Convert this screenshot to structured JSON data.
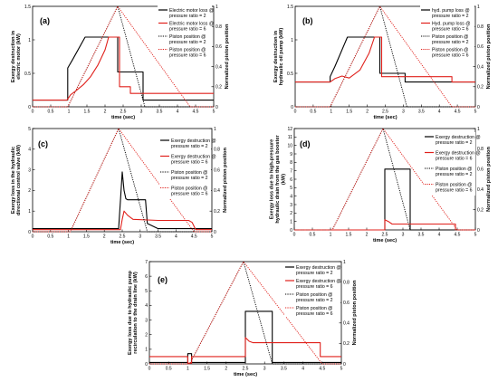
{
  "chart_data": [
    {
      "type": "line",
      "panel_label": "(a)",
      "xlabel": "time (sec)",
      "ylabel": "Exergy destruction in electric motor (kW)",
      "y2label": "Normalized piston position",
      "xlim": [
        0,
        5
      ],
      "ylim": [
        0,
        1.5
      ],
      "y2lim": [
        0,
        1
      ],
      "xticks": [
        "0",
        "0.5",
        "1",
        "1.5",
        "2",
        "2.5",
        "3",
        "3.5",
        "4",
        "4.5",
        "5"
      ],
      "yticks": [
        "0",
        "0.5",
        "1",
        "1.5"
      ],
      "y2ticks": [
        "0",
        "0.2",
        "0.4",
        "0.6",
        "0.8",
        "1"
      ],
      "legend_position": "top-right",
      "series": [
        {
          "name": "Electric motor loss @ pressure ratio = 2",
          "color": "#000000",
          "dash": "solid",
          "axis": "left",
          "x": [
            0,
            0.97,
            0.97,
            1.1,
            1.45,
            2.35,
            2.35,
            3.05,
            3.05,
            5
          ],
          "y": [
            0.1,
            0.1,
            0.58,
            0.7,
            1.04,
            1.04,
            0.52,
            0.52,
            0.1,
            0.1
          ]
        },
        {
          "name": "Electric motor loss @ pressure ratio = 6",
          "color": "#e0201b",
          "dash": "solid",
          "axis": "left",
          "x": [
            0,
            0.95,
            1.05,
            1.2,
            1.4,
            1.6,
            1.8,
            2.0,
            2.1,
            2.1,
            2.4,
            2.4,
            2.7,
            2.7,
            5
          ],
          "y": [
            0.1,
            0.1,
            0.18,
            0.24,
            0.33,
            0.45,
            0.62,
            0.85,
            1.04,
            1.04,
            1.04,
            0.3,
            0.3,
            0.2,
            0.2
          ]
        },
        {
          "name": "Piston position @ pressure ratio = 2",
          "color": "#000000",
          "dash": "dotted",
          "axis": "right",
          "x": [
            0,
            0.97,
            2.35,
            3.1,
            5
          ],
          "y": [
            0,
            0,
            1,
            0,
            0
          ]
        },
        {
          "name": "Piston position @ pressure ratio = 6",
          "color": "#e0201b",
          "dash": "dotted",
          "axis": "right",
          "x": [
            0,
            0.97,
            2.35,
            4.35,
            5
          ],
          "y": [
            0,
            0,
            1,
            0,
            0
          ]
        }
      ]
    },
    {
      "type": "line",
      "panel_label": "(b)",
      "xlabel": "time (sec)",
      "ylabel": "Exergy destruction in hydraulic oil pump (kW)",
      "y2label": "Normalized piston position",
      "xlim": [
        0,
        5
      ],
      "ylim": [
        0,
        1.5
      ],
      "y2lim": [
        0,
        1
      ],
      "xticks": [
        "0",
        "0.5",
        "1",
        "1.5",
        "2",
        "2.5",
        "3",
        "3.5",
        "4",
        "4.5",
        "5"
      ],
      "yticks": [
        "0",
        "0.5",
        "1",
        "1.5"
      ],
      "y2ticks": [
        "0",
        "0.2",
        "0.4",
        "0.6",
        "0.8",
        "1"
      ],
      "legend_position": "top-right",
      "series": [
        {
          "name": "hyd. pump loss @ pressure ratio = 2",
          "color": "#000000",
          "dash": "solid",
          "axis": "left",
          "x": [
            0,
            0.97,
            0.97,
            1.1,
            1.45,
            2.35,
            2.35,
            3.05,
            3.05,
            5
          ],
          "y": [
            0.37,
            0.37,
            0.45,
            0.6,
            1.04,
            1.04,
            0.5,
            0.5,
            0.37,
            0.37
          ]
        },
        {
          "name": "Hyd. pump loss @ pressure ratio = 6",
          "color": "#e0201b",
          "dash": "solid",
          "axis": "left",
          "x": [
            0,
            0.97,
            1.1,
            1.3,
            1.5,
            1.8,
            2.05,
            2.2,
            2.2,
            2.4,
            2.4,
            4.35,
            4.35,
            5
          ],
          "y": [
            0.37,
            0.37,
            0.42,
            0.46,
            0.43,
            0.55,
            0.8,
            1.04,
            1.04,
            1.04,
            0.45,
            0.45,
            0.37,
            0.37
          ]
        },
        {
          "name": "Piston position @ pressure ratio = 2",
          "color": "#000000",
          "dash": "dotted",
          "axis": "right",
          "x": [
            0,
            0.97,
            2.35,
            3.1,
            5
          ],
          "y": [
            0,
            0,
            1,
            0,
            0
          ]
        },
        {
          "name": "Piston position @ pressure ratio = 6",
          "color": "#e0201b",
          "dash": "dotted",
          "axis": "right",
          "x": [
            0,
            0.97,
            2.35,
            4.35,
            5
          ],
          "y": [
            0,
            0,
            1,
            0,
            0
          ]
        }
      ]
    },
    {
      "type": "line",
      "panel_label": "(c)",
      "xlabel": "time (sec)",
      "ylabel": "Exergy loss in the hydraulic directional control valve (kW)",
      "y2label": "Normalized piston position",
      "xlim": [
        0,
        5
      ],
      "ylim": [
        0,
        5
      ],
      "y2lim": [
        0,
        1
      ],
      "xticks": [
        "0",
        "0.5",
        "1",
        "1.5",
        "2",
        "2.5",
        "3",
        "3.5",
        "4",
        "4.5",
        "5"
      ],
      "yticks": [
        "0",
        "1",
        "2",
        "3",
        "4",
        "5"
      ],
      "y2ticks": [
        "0",
        "0.2",
        "0.4",
        "0.6",
        "0.8",
        "1"
      ],
      "legend_position": "right",
      "series": [
        {
          "name": "Exergy destruction @ pressure ratio = 2",
          "color": "#000000",
          "dash": "solid",
          "axis": "left",
          "x": [
            0,
            2.4,
            2.45,
            2.5,
            2.55,
            2.6,
            2.65,
            2.7,
            3.15,
            3.2,
            3.5,
            4.4,
            5
          ],
          "y": [
            0.15,
            0.15,
            1.5,
            2.9,
            2.0,
            1.6,
            1.55,
            1.55,
            1.55,
            0.4,
            0.15,
            0.15,
            0.15
          ]
        },
        {
          "name": "Exergy destruction @ pressure ratio = 6",
          "color": "#e0201b",
          "dash": "solid",
          "axis": "left",
          "x": [
            0,
            2.45,
            2.5,
            2.55,
            2.65,
            2.8,
            3.5,
            4.35,
            4.45,
            4.55,
            5
          ],
          "y": [
            0.1,
            0.1,
            0.6,
            1.0,
            0.8,
            0.6,
            0.55,
            0.55,
            0.45,
            0.1,
            0.1
          ]
        },
        {
          "name": "Piston position @ pressure ratio = 2",
          "color": "#000000",
          "dash": "dotted",
          "axis": "right",
          "x": [
            0,
            1.05,
            2.4,
            3.2,
            5
          ],
          "y": [
            0,
            0,
            1,
            0,
            0
          ]
        },
        {
          "name": "Piston position @ pressure ratio = 6",
          "color": "#e0201b",
          "dash": "dotted",
          "axis": "right",
          "x": [
            0,
            1.05,
            2.4,
            4.5,
            5
          ],
          "y": [
            0,
            0,
            1,
            0,
            0
          ]
        }
      ]
    },
    {
      "type": "line",
      "panel_label": "(d)",
      "xlabel": "time (sec)",
      "ylabel": "Exergy loss due to high-pressure hydraulic drain from the gas booster (kW)",
      "y2label": "Normalized piston position",
      "xlim": [
        0,
        5
      ],
      "ylim": [
        0,
        12
      ],
      "y2lim": [
        0,
        1
      ],
      "xticks": [
        "0",
        "0.5",
        "1",
        "1.5",
        "2",
        "2.5",
        "3",
        "3.5",
        "4",
        "4.5",
        "5"
      ],
      "yticks": [
        "0",
        "1",
        "2",
        "3",
        "4",
        "5",
        "6",
        "7",
        "8",
        "9",
        "10",
        "11",
        "12"
      ],
      "y2ticks": [
        "0",
        "0.2",
        "0.4",
        "0.6",
        "0.8",
        "1"
      ],
      "legend_position": "right",
      "series": [
        {
          "name": "Exergy destruction @ pressure ratio = 2",
          "color": "#000000",
          "dash": "solid",
          "axis": "left",
          "x": [
            0,
            2.5,
            2.5,
            3.2,
            3.2,
            5
          ],
          "y": [
            0,
            0,
            7.2,
            7.2,
            0,
            0
          ]
        },
        {
          "name": "Exergy destruction @ pressure ratio = 6",
          "color": "#e0201b",
          "dash": "solid",
          "axis": "left",
          "x": [
            0,
            2.5,
            2.5,
            2.6,
            2.7,
            4.45,
            4.45,
            5
          ],
          "y": [
            0,
            0,
            1.2,
            1.0,
            0.7,
            0.7,
            0,
            0
          ]
        },
        {
          "name": "Piston position @ pressure ratio = 2",
          "color": "#000000",
          "dash": "dotted",
          "axis": "right",
          "x": [
            0,
            1.05,
            2.45,
            3.2,
            5
          ],
          "y": [
            0,
            0,
            1,
            0,
            0
          ]
        },
        {
          "name": "Piston position @ pressure ratio = 6",
          "color": "#e0201b",
          "dash": "dotted",
          "axis": "right",
          "x": [
            0,
            1.05,
            2.45,
            4.5,
            5
          ],
          "y": [
            0,
            0,
            1,
            0,
            0
          ]
        }
      ]
    },
    {
      "type": "line",
      "panel_label": "(e)",
      "xlabel": "time (sec)",
      "ylabel": "Exergy loss due to hydraulic pump recirculation to the drain line (kW)",
      "y2label": "Normalized piston position",
      "xlim": [
        0,
        5
      ],
      "ylim": [
        0,
        7
      ],
      "y2lim": [
        0,
        1
      ],
      "xticks": [
        "0",
        "0.5",
        "1",
        "1.5",
        "2",
        "2.5",
        "3",
        "3.5",
        "4",
        "4.5",
        "5"
      ],
      "yticks": [
        "0",
        "1",
        "2",
        "3",
        "4",
        "5",
        "6",
        "7"
      ],
      "y2ticks": [
        "0",
        "0.2",
        "0.4",
        "0.6",
        "0.8",
        "1"
      ],
      "legend_position": "top-right",
      "series": [
        {
          "name": "Exergy destruction @ pressure ratio = 2",
          "color": "#000000",
          "dash": "solid",
          "axis": "left",
          "x": [
            0,
            1.0,
            1.0,
            1.1,
            1.1,
            2.5,
            2.5,
            3.2,
            3.2,
            5
          ],
          "y": [
            0.1,
            0.1,
            0.7,
            0.7,
            0.1,
            0.1,
            3.6,
            3.6,
            0.1,
            0.1
          ]
        },
        {
          "name": "Exergy destruction @ pressure ratio = 6",
          "color": "#e0201b",
          "dash": "solid",
          "axis": "left",
          "x": [
            0,
            1.0,
            1.0,
            1.1,
            1.1,
            2.5,
            2.5,
            2.6,
            2.7,
            4.45,
            4.45,
            5
          ],
          "y": [
            0.5,
            0.5,
            0.05,
            0.05,
            0.5,
            0.5,
            1.8,
            1.55,
            1.45,
            1.45,
            0.5,
            0.5
          ]
        },
        {
          "name": "Piston position @ pressure ratio = 2",
          "color": "#000000",
          "dash": "dotted",
          "axis": "right",
          "x": [
            0,
            1.05,
            2.45,
            3.2,
            5
          ],
          "y": [
            0,
            0,
            1,
            0,
            0
          ]
        },
        {
          "name": "Piston position @ pressure ratio = 6",
          "color": "#e0201b",
          "dash": "dotted",
          "axis": "right",
          "x": [
            0,
            1.05,
            2.45,
            4.5,
            5
          ],
          "y": [
            0,
            0,
            1,
            0,
            0
          ]
        }
      ]
    }
  ]
}
